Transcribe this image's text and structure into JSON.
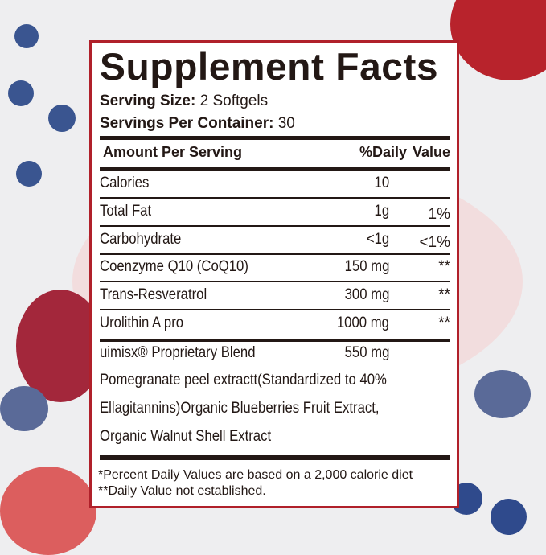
{
  "title": "Supplement Facts",
  "serving_size": {
    "label": "Serving Size:",
    "value": "2 Softgels"
  },
  "servings_per_container": {
    "label": "Servings Per Container:",
    "value": "30"
  },
  "header": {
    "amount": "Amount Per Serving",
    "daily": "%Daily",
    "value": "Value"
  },
  "rows": [
    {
      "name": "Calories",
      "amount": "10",
      "dv": ""
    },
    {
      "name": "Total Fat",
      "amount": "1g",
      "dv": "1%"
    },
    {
      "name": "Carbohydrate",
      "amount": "<1g",
      "dv": "<1%"
    },
    {
      "name": "Coenzyme Q10 (CoQ10)",
      "amount": "150 mg",
      "dv": "**"
    },
    {
      "name": "Trans-Resveratrol",
      "amount": "300 mg",
      "dv": "**"
    },
    {
      "name": "Urolithin A pro",
      "amount": "1000 mg",
      "dv": "**"
    }
  ],
  "blend": {
    "name": "uimisx® Proprietary Blend",
    "amount": "550 mg",
    "lines": [
      "Pomegranate peel extractt(Standardized to 40%",
      "Ellagitannins)Organic Blueberries Fruit Extract,",
      "Organic Walnut Shell Extract"
    ]
  },
  "footnotes": [
    "*Percent Daily Values are based on a 2,000 calorie diet",
    "**Daily Value not established."
  ],
  "colors": {
    "border": "#b0202a",
    "text": "#231815"
  }
}
